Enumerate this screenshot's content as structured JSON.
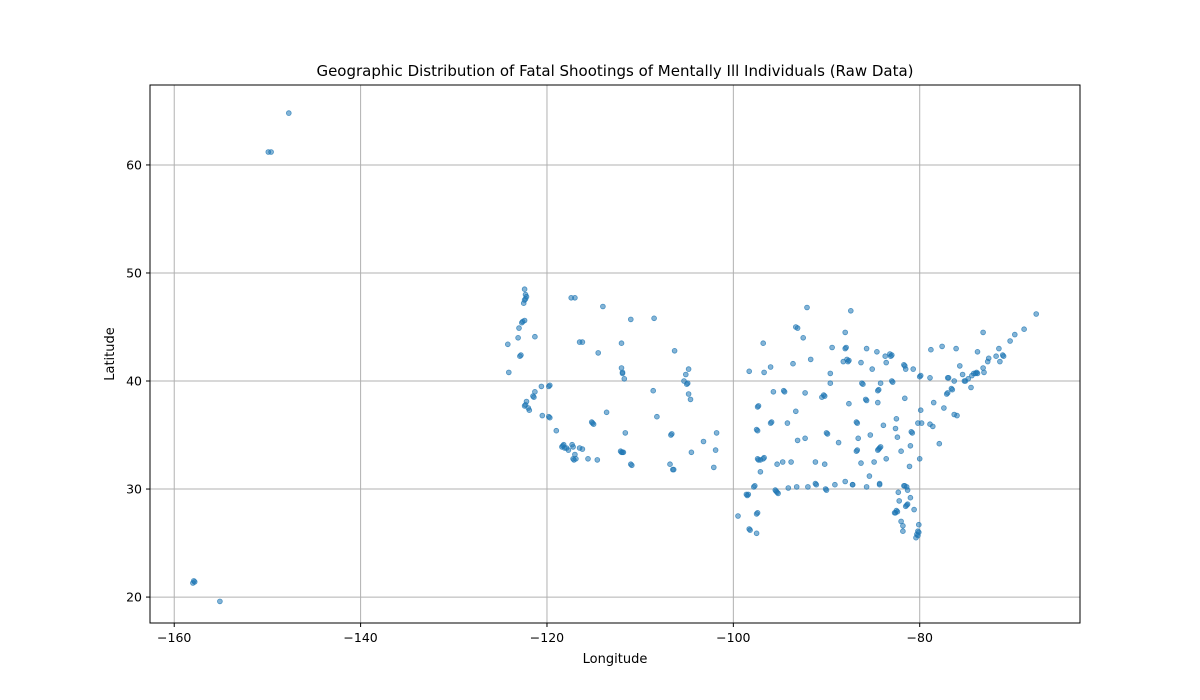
{
  "chart_data": {
    "type": "scatter",
    "title": "Geographic Distribution of Fatal Shootings of Mentally Ill Individuals (Raw Data)",
    "xlabel": "Longitude",
    "ylabel": "Latitude",
    "xlim": [
      -162.6,
      -62.8
    ],
    "ylim": [
      17.6,
      67.4
    ],
    "xticks": [
      -160,
      -140,
      -120,
      -100,
      -80
    ],
    "yticks": [
      20,
      30,
      40,
      50,
      60
    ],
    "xtick_labels": [
      "−160",
      "−140",
      "−120",
      "−100",
      "−80"
    ],
    "ytick_labels": [
      "20",
      "30",
      "40",
      "50",
      "60"
    ],
    "grid": true,
    "marker_color": "#1f77b4",
    "alpha": 0.55,
    "points": [
      [
        -147.7,
        64.8
      ],
      [
        -149.9,
        61.2
      ],
      [
        -149.6,
        61.2
      ],
      [
        -157.9,
        21.5
      ],
      [
        -158.0,
        21.3
      ],
      [
        -157.8,
        21.4
      ],
      [
        -155.1,
        19.6
      ],
      [
        -122.3,
        47.6
      ],
      [
        -122.4,
        47.5
      ],
      [
        -122.2,
        47.8
      ],
      [
        -122.5,
        47.2
      ],
      [
        -122.3,
        48.0
      ],
      [
        -122.4,
        48.5
      ],
      [
        -122.6,
        45.5
      ],
      [
        -122.7,
        45.4
      ],
      [
        -122.4,
        45.6
      ],
      [
        -123.0,
        44.9
      ],
      [
        -123.1,
        44.0
      ],
      [
        -122.9,
        42.3
      ],
      [
        -122.8,
        42.4
      ],
      [
        -124.1,
        40.8
      ],
      [
        -124.2,
        43.4
      ],
      [
        -121.3,
        44.1
      ],
      [
        -121.9,
        37.3
      ],
      [
        -122.0,
        37.5
      ],
      [
        -122.3,
        37.8
      ],
      [
        -122.4,
        37.7
      ],
      [
        -122.2,
        38.1
      ],
      [
        -121.5,
        38.6
      ],
      [
        -121.4,
        38.5
      ],
      [
        -121.3,
        39.0
      ],
      [
        -120.6,
        39.5
      ],
      [
        -120.5,
        36.8
      ],
      [
        -119.8,
        36.7
      ],
      [
        -119.7,
        36.6
      ],
      [
        -119.0,
        35.4
      ],
      [
        -118.2,
        34.1
      ],
      [
        -118.3,
        34.0
      ],
      [
        -118.4,
        33.9
      ],
      [
        -118.1,
        33.8
      ],
      [
        -117.9,
        33.8
      ],
      [
        -117.7,
        33.6
      ],
      [
        -117.3,
        34.1
      ],
      [
        -117.2,
        33.9
      ],
      [
        -117.1,
        32.7
      ],
      [
        -117.2,
        32.8
      ],
      [
        -116.9,
        32.8
      ],
      [
        -117.0,
        33.2
      ],
      [
        -116.5,
        33.8
      ],
      [
        -116.2,
        33.7
      ],
      [
        -115.6,
        32.8
      ],
      [
        -115.2,
        36.2
      ],
      [
        -115.1,
        36.1
      ],
      [
        -115.0,
        36.0
      ],
      [
        -119.8,
        39.5
      ],
      [
        -119.7,
        39.6
      ],
      [
        -117.4,
        47.7
      ],
      [
        -117.0,
        47.7
      ],
      [
        -116.2,
        43.6
      ],
      [
        -116.5,
        43.6
      ],
      [
        -114.5,
        42.6
      ],
      [
        -112.0,
        43.5
      ],
      [
        -111.9,
        40.8
      ],
      [
        -111.9,
        40.7
      ],
      [
        -111.7,
        40.2
      ],
      [
        -112.0,
        41.2
      ],
      [
        -114.0,
        46.9
      ],
      [
        -111.0,
        45.7
      ],
      [
        -108.5,
        45.8
      ],
      [
        -104.8,
        41.1
      ],
      [
        -106.3,
        42.8
      ],
      [
        -105.0,
        39.7
      ],
      [
        -104.9,
        39.8
      ],
      [
        -104.8,
        38.8
      ],
      [
        -104.6,
        38.3
      ],
      [
        -105.3,
        40.0
      ],
      [
        -105.1,
        40.6
      ],
      [
        -108.6,
        39.1
      ],
      [
        -112.1,
        33.5
      ],
      [
        -112.0,
        33.4
      ],
      [
        -111.9,
        33.4
      ],
      [
        -111.8,
        33.4
      ],
      [
        -111.6,
        35.2
      ],
      [
        -110.9,
        32.2
      ],
      [
        -111.0,
        32.3
      ],
      [
        -114.6,
        32.7
      ],
      [
        -113.6,
        37.1
      ],
      [
        -106.6,
        35.1
      ],
      [
        -106.7,
        35.0
      ],
      [
        -106.5,
        31.8
      ],
      [
        -106.4,
        31.8
      ],
      [
        -106.8,
        32.3
      ],
      [
        -103.2,
        34.4
      ],
      [
        -104.5,
        33.4
      ],
      [
        -108.2,
        36.7
      ],
      [
        -97.7,
        30.3
      ],
      [
        -97.8,
        30.2
      ],
      [
        -98.5,
        29.4
      ],
      [
        -98.4,
        29.5
      ],
      [
        -98.6,
        29.5
      ],
      [
        -95.4,
        29.8
      ],
      [
        -95.3,
        29.7
      ],
      [
        -95.5,
        29.9
      ],
      [
        -95.2,
        29.6
      ],
      [
        -94.1,
        30.1
      ],
      [
        -96.8,
        32.8
      ],
      [
        -96.7,
        32.9
      ],
      [
        -97.3,
        32.7
      ],
      [
        -97.1,
        32.7
      ],
      [
        -97.4,
        32.8
      ],
      [
        -97.1,
        31.6
      ],
      [
        -101.8,
        35.2
      ],
      [
        -101.9,
        33.6
      ],
      [
        -102.1,
        32.0
      ],
      [
        -97.4,
        27.8
      ],
      [
        -97.5,
        27.7
      ],
      [
        -97.5,
        25.9
      ],
      [
        -98.2,
        26.2
      ],
      [
        -98.3,
        26.3
      ],
      [
        -99.5,
        27.5
      ],
      [
        -94.7,
        32.5
      ],
      [
        -95.3,
        32.3
      ],
      [
        -97.5,
        35.5
      ],
      [
        -97.4,
        35.4
      ],
      [
        -95.9,
        36.2
      ],
      [
        -96.0,
        36.1
      ],
      [
        -97.3,
        37.7
      ],
      [
        -97.4,
        37.6
      ],
      [
        -95.7,
        39.0
      ],
      [
        -94.6,
        39.1
      ],
      [
        -94.5,
        39.0
      ],
      [
        -93.3,
        37.2
      ],
      [
        -92.3,
        34.7
      ],
      [
        -94.2,
        36.1
      ],
      [
        -93.1,
        34.5
      ],
      [
        -96.0,
        41.3
      ],
      [
        -96.7,
        40.8
      ],
      [
        -98.3,
        40.9
      ],
      [
        -96.8,
        43.5
      ],
      [
        -93.6,
        41.6
      ],
      [
        -91.7,
        42.0
      ],
      [
        -93.3,
        45.0
      ],
      [
        -93.1,
        44.9
      ],
      [
        -92.5,
        44.0
      ],
      [
        -92.1,
        46.8
      ],
      [
        -89.4,
        43.1
      ],
      [
        -88.0,
        43.0
      ],
      [
        -87.9,
        43.1
      ],
      [
        -87.6,
        41.9
      ],
      [
        -87.7,
        41.8
      ],
      [
        -87.8,
        42.0
      ],
      [
        -88.2,
        41.8
      ],
      [
        -89.6,
        39.8
      ],
      [
        -89.6,
        40.7
      ],
      [
        -90.2,
        38.6
      ],
      [
        -90.3,
        38.7
      ],
      [
        -90.5,
        38.5
      ],
      [
        -92.3,
        38.9
      ],
      [
        -91.2,
        32.5
      ],
      [
        -90.2,
        32.3
      ],
      [
        -90.1,
        30.0
      ],
      [
        -90.0,
        29.9
      ],
      [
        -91.2,
        30.5
      ],
      [
        -91.1,
        30.4
      ],
      [
        -92.0,
        30.2
      ],
      [
        -93.2,
        30.2
      ],
      [
        -93.8,
        32.5
      ],
      [
        -89.1,
        30.4
      ],
      [
        -88.0,
        30.7
      ],
      [
        -86.8,
        33.5
      ],
      [
        -86.7,
        33.6
      ],
      [
        -86.3,
        32.4
      ],
      [
        -85.4,
        31.2
      ],
      [
        -87.2,
        30.4
      ],
      [
        -86.6,
        34.7
      ],
      [
        -88.7,
        34.3
      ],
      [
        -89.9,
        35.1
      ],
      [
        -90.0,
        35.2
      ],
      [
        -86.8,
        36.2
      ],
      [
        -86.7,
        36.1
      ],
      [
        -85.3,
        35.0
      ],
      [
        -83.9,
        35.9
      ],
      [
        -82.5,
        36.5
      ],
      [
        -85.8,
        38.3
      ],
      [
        -85.7,
        38.2
      ],
      [
        -84.5,
        38.0
      ],
      [
        -84.5,
        39.1
      ],
      [
        -84.4,
        39.2
      ],
      [
        -84.2,
        39.8
      ],
      [
        -83.0,
        40.0
      ],
      [
        -82.9,
        39.9
      ],
      [
        -81.7,
        41.5
      ],
      [
        -81.6,
        41.4
      ],
      [
        -81.5,
        41.1
      ],
      [
        -80.7,
        41.1
      ],
      [
        -83.6,
        41.7
      ],
      [
        -86.2,
        39.8
      ],
      [
        -86.1,
        39.7
      ],
      [
        -85.1,
        41.1
      ],
      [
        -87.6,
        37.9
      ],
      [
        -86.3,
        41.7
      ],
      [
        -83.1,
        42.3
      ],
      [
        -83.0,
        42.4
      ],
      [
        -83.2,
        42.5
      ],
      [
        -84.6,
        42.7
      ],
      [
        -85.7,
        43.0
      ],
      [
        -83.7,
        42.3
      ],
      [
        -88.0,
        44.5
      ],
      [
        -87.4,
        46.5
      ],
      [
        -80.0,
        40.4
      ],
      [
        -79.9,
        40.5
      ],
      [
        -78.9,
        40.3
      ],
      [
        -77.0,
        40.3
      ],
      [
        -76.9,
        40.3
      ],
      [
        -75.2,
        40.0
      ],
      [
        -75.1,
        40.0
      ],
      [
        -75.4,
        40.6
      ],
      [
        -76.3,
        40.0
      ],
      [
        -75.7,
        41.4
      ],
      [
        -78.8,
        42.9
      ],
      [
        -77.6,
        43.2
      ],
      [
        -76.1,
        43.0
      ],
      [
        -73.8,
        42.7
      ],
      [
        -74.0,
        40.7
      ],
      [
        -73.9,
        40.8
      ],
      [
        -73.8,
        40.7
      ],
      [
        -73.1,
        40.8
      ],
      [
        -74.2,
        40.7
      ],
      [
        -74.4,
        40.5
      ],
      [
        -74.8,
        40.2
      ],
      [
        -74.5,
        39.4
      ],
      [
        -73.2,
        41.2
      ],
      [
        -72.7,
        41.8
      ],
      [
        -71.4,
        41.8
      ],
      [
        -71.1,
        42.4
      ],
      [
        -71.0,
        42.3
      ],
      [
        -71.8,
        42.3
      ],
      [
        -72.6,
        42.1
      ],
      [
        -71.5,
        43.0
      ],
      [
        -70.3,
        43.7
      ],
      [
        -69.8,
        44.3
      ],
      [
        -68.8,
        44.8
      ],
      [
        -67.5,
        46.2
      ],
      [
        -73.2,
        44.5
      ],
      [
        -77.0,
        38.9
      ],
      [
        -77.1,
        38.8
      ],
      [
        -76.6,
        39.3
      ],
      [
        -76.5,
        39.2
      ],
      [
        -77.4,
        37.5
      ],
      [
        -76.3,
        36.9
      ],
      [
        -76.0,
        36.8
      ],
      [
        -79.9,
        37.3
      ],
      [
        -78.5,
        38.0
      ],
      [
        -81.6,
        38.4
      ],
      [
        -80.8,
        35.2
      ],
      [
        -80.9,
        35.3
      ],
      [
        -78.6,
        35.8
      ],
      [
        -78.9,
        36.0
      ],
      [
        -79.8,
        36.1
      ],
      [
        -80.2,
        36.1
      ],
      [
        -77.9,
        34.2
      ],
      [
        -82.6,
        35.6
      ],
      [
        -81.0,
        34.0
      ],
      [
        -80.0,
        32.8
      ],
      [
        -82.4,
        34.8
      ],
      [
        -84.4,
        33.7
      ],
      [
        -84.3,
        33.8
      ],
      [
        -84.5,
        33.6
      ],
      [
        -84.2,
        33.9
      ],
      [
        -83.6,
        32.8
      ],
      [
        -81.1,
        32.1
      ],
      [
        -84.9,
        32.5
      ],
      [
        -82.0,
        33.5
      ],
      [
        -81.7,
        30.3
      ],
      [
        -81.6,
        30.3
      ],
      [
        -81.4,
        30.2
      ],
      [
        -84.3,
        30.4
      ],
      [
        -84.3,
        30.5
      ],
      [
        -87.2,
        30.4
      ],
      [
        -85.7,
        30.2
      ],
      [
        -82.3,
        29.7
      ],
      [
        -81.4,
        28.5
      ],
      [
        -81.3,
        28.6
      ],
      [
        -81.5,
        28.4
      ],
      [
        -81.0,
        29.2
      ],
      [
        -80.6,
        28.1
      ],
      [
        -82.5,
        28.0
      ],
      [
        -82.4,
        27.9
      ],
      [
        -82.6,
        27.8
      ],
      [
        -82.7,
        27.8
      ],
      [
        -82.0,
        27.0
      ],
      [
        -81.8,
        26.6
      ],
      [
        -81.8,
        26.1
      ],
      [
        -80.1,
        26.7
      ],
      [
        -80.2,
        26.1
      ],
      [
        -80.1,
        26.0
      ],
      [
        -80.3,
        25.8
      ],
      [
        -80.2,
        25.7
      ],
      [
        -80.4,
        25.5
      ],
      [
        -81.3,
        29.9
      ],
      [
        -82.2,
        28.9
      ]
    ]
  }
}
